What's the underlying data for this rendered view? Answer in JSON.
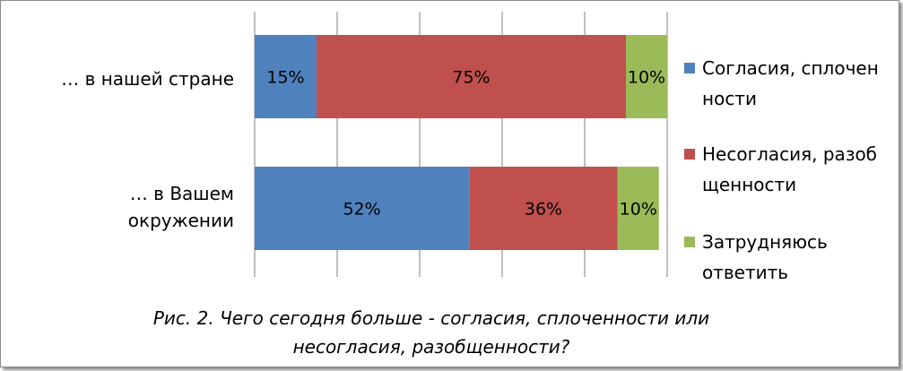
{
  "chart_data": {
    "type": "bar",
    "orientation": "horizontal",
    "stacked": true,
    "categories": [
      "… в нашей стране",
      "… в Вашем окружении"
    ],
    "series": [
      {
        "name": "Согласия, сплоченности",
        "values": [
          15,
          52
        ],
        "labels": [
          "15%",
          "52%"
        ],
        "color": "#4f81bd"
      },
      {
        "name": "Несогласия, разобщенности",
        "values": [
          75,
          36
        ],
        "labels": [
          "75%",
          "36%"
        ],
        "color": "#c0504d"
      },
      {
        "name": "Затрудняюсь ответить",
        "values": [
          10,
          10
        ],
        "labels": [
          "10%",
          "10%"
        ],
        "color": "#9bbb59"
      }
    ],
    "xlim": [
      0,
      100
    ],
    "grid": true,
    "legend_position": "right",
    "caption": "Рис. 2. Чего сегодня больше - согласия, сплоченности или несогласия, разобщенности?"
  },
  "legend": {
    "items": [
      {
        "line1": "Согласия, сплочен",
        "line2": "ности"
      },
      {
        "line1": "Несогласия, разоб",
        "line2": "щенности"
      },
      {
        "line1": "Затрудняюсь",
        "line2": "ответить"
      }
    ]
  },
  "labels": {
    "cat0": "… в нашей стране",
    "cat1_line1": "… в Вашем",
    "cat1_line2": "окружении"
  },
  "caption": {
    "line1": "Рис. 2. Чего сегодня больше - согласия, сплоченности или",
    "line2": "несогласия, разобщенности?"
  }
}
